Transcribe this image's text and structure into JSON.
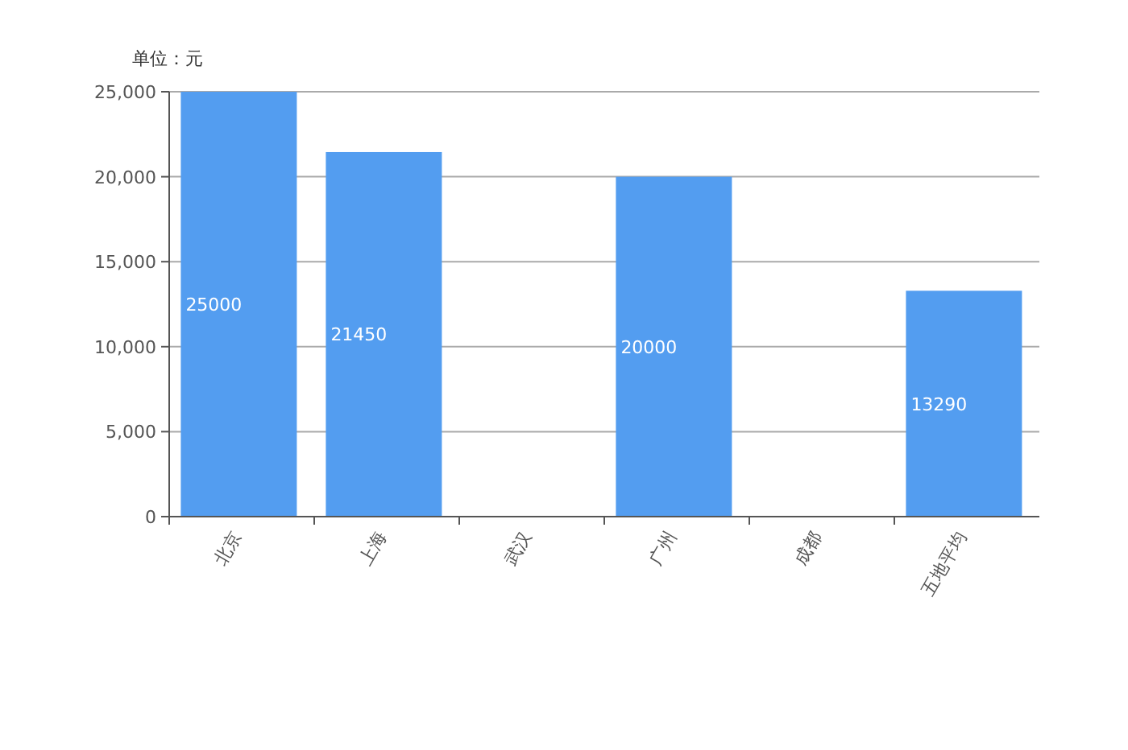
{
  "chart_data": {
    "type": "bar",
    "ylabel": "单位：元",
    "categories": [
      "北京",
      "上海",
      "武汉",
      "广州",
      "成都",
      "五地平均"
    ],
    "series": [
      {
        "color": "#539df0",
        "values": [
          25000,
          21450,
          null,
          20000,
          null,
          13290
        ]
      }
    ],
    "ylim": [
      0,
      25000
    ],
    "yticks": [
      {
        "value": 0,
        "label": "0"
      },
      {
        "value": 5000,
        "label": "5,000"
      },
      {
        "value": 10000,
        "label": "10,000"
      },
      {
        "value": 15000,
        "label": "15,000"
      },
      {
        "value": 20000,
        "label": "20,000"
      },
      {
        "value": 25000,
        "label": "25,000"
      }
    ],
    "grid": "y",
    "data_labels": true
  }
}
